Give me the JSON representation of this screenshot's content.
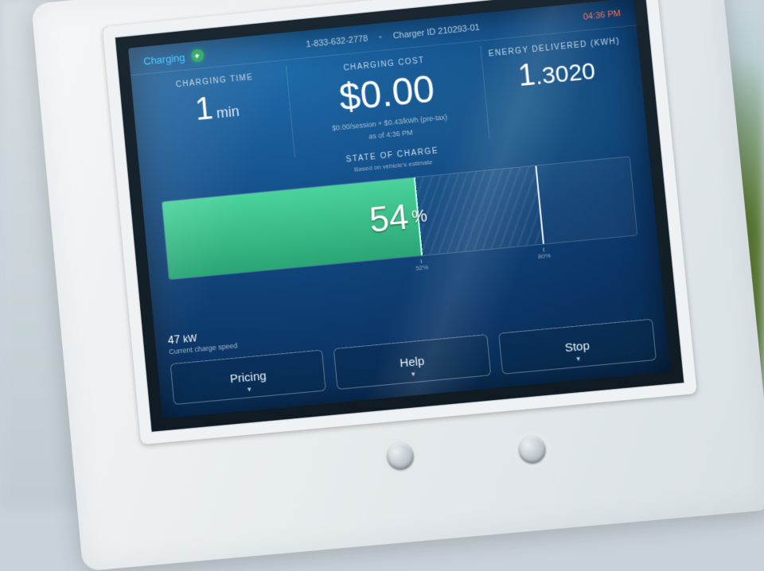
{
  "topbar": {
    "status_label": "Charging",
    "phone": "1-833-632-2778",
    "charger_id": "Charger ID 210293-01",
    "clock": "04:36 PM",
    "status_color": "#2fc6ff",
    "clock_color": "#ff6a4d",
    "status_indicator_color": "#24a35b"
  },
  "metrics": {
    "time": {
      "label": "CHARGING TIME",
      "value": "1",
      "unit": "min"
    },
    "cost": {
      "label": "CHARGING COST",
      "value": "$0.00",
      "sub1": "$0.00/session + $0.43/kWh (pre-tax)",
      "sub2": "as of 4:36 PM"
    },
    "energy": {
      "label": "ENERGY DELIVERED (kWh)",
      "lead": "1",
      "rest": ".3020"
    }
  },
  "soc": {
    "title": "STATE OF CHARGE",
    "subtitle": "Based on vehicle's estimate",
    "percent": 54,
    "max_percent": 80,
    "value_text": "54",
    "percent_sign": "%",
    "tick_labels": {
      "fill": "52%",
      "max": "80%"
    },
    "colors": {
      "fill_top": "#4bd39b",
      "fill_bottom": "#2aa576",
      "fill_edge": "#b9ffe3",
      "track_border": "rgba(255,255,255,0.18)",
      "max_marker": "#e9f1f8"
    }
  },
  "speed": {
    "value": "47",
    "unit": "kW",
    "sub": "Current charge speed"
  },
  "buttons": {
    "pricing": "Pricing",
    "help": "Help",
    "stop": "Stop"
  },
  "theme": {
    "screen_bg_center": "#1e6aa8",
    "screen_bg_edge": "#082748",
    "text_primary": "#e9f1f8",
    "text_muted": "#9fb6ca",
    "divider": "rgba(255,255,255,0.15)"
  }
}
